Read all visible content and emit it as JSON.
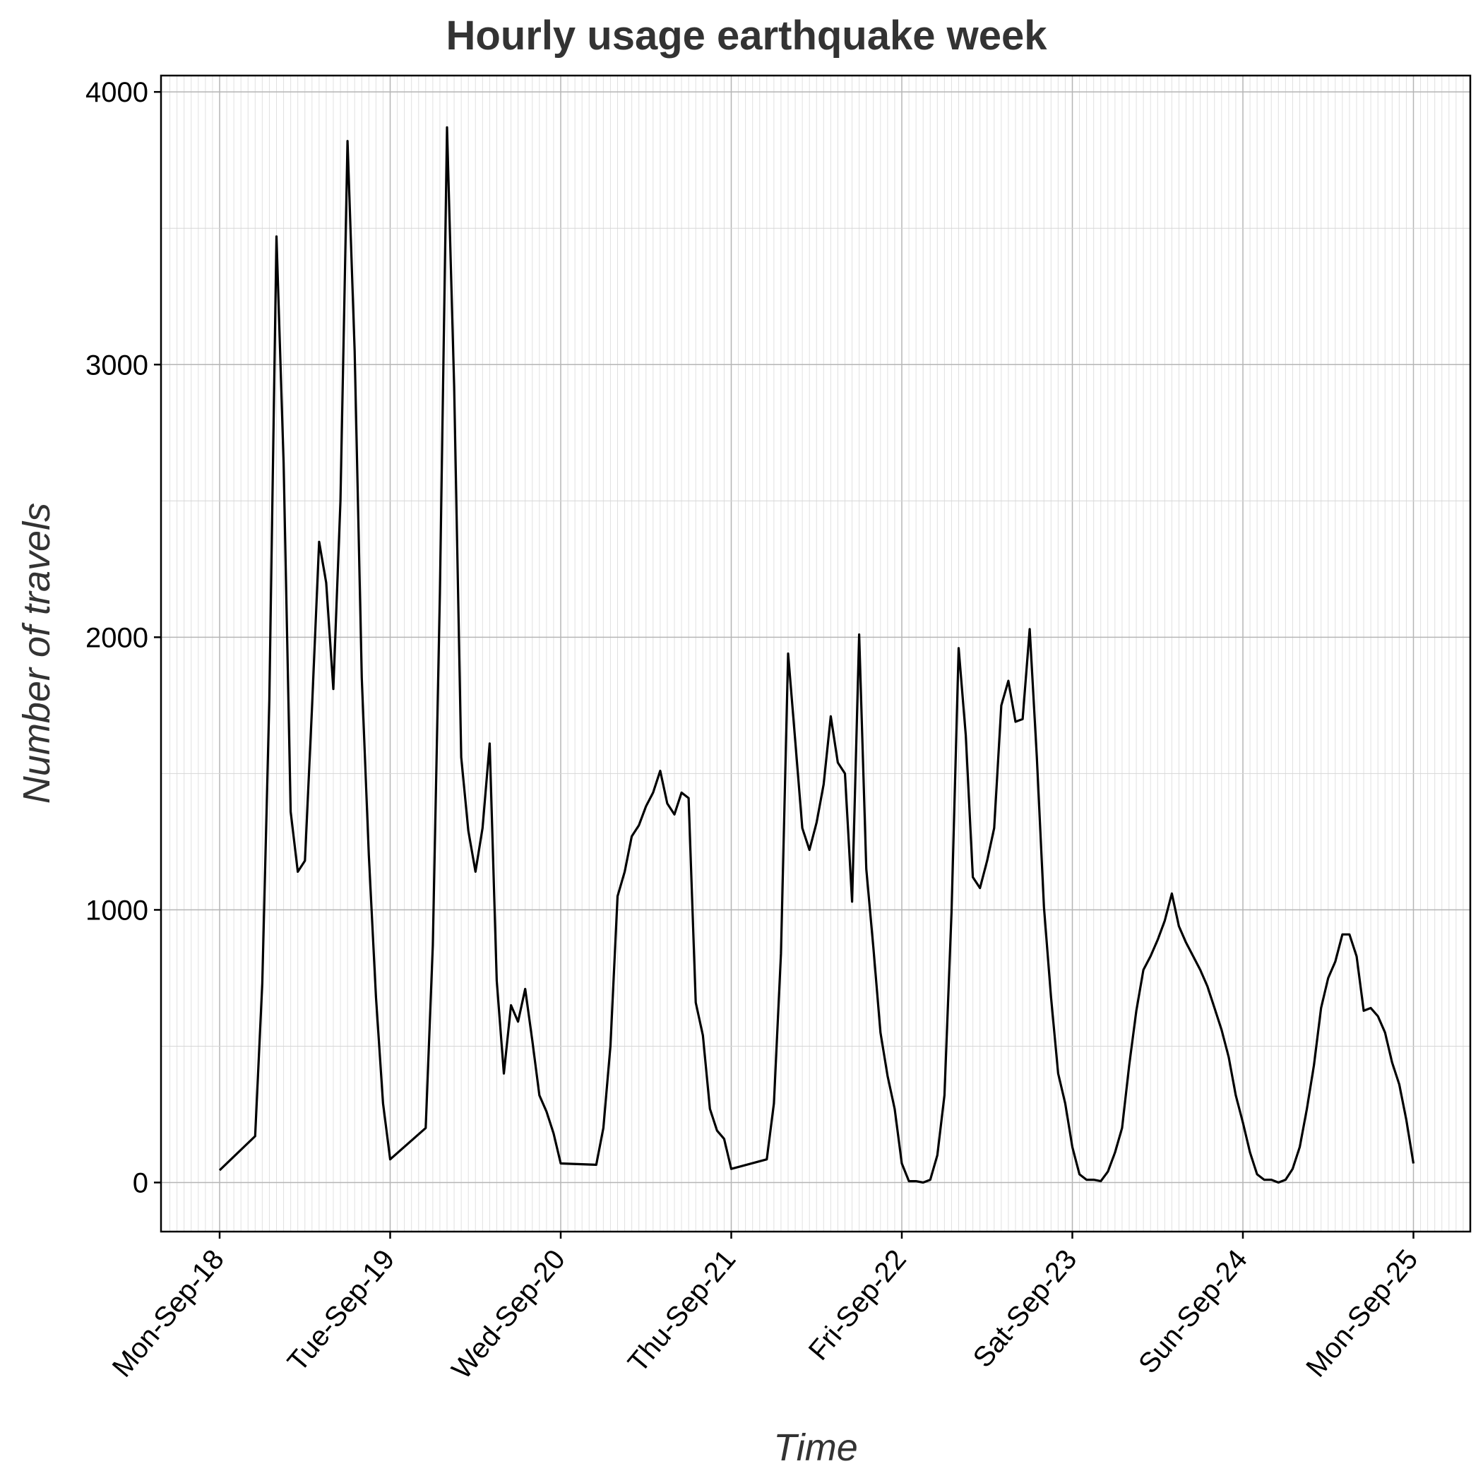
{
  "chart_data": {
    "type": "line",
    "title": "Hourly usage earthquake week",
    "xlabel": "Time",
    "ylabel": "Number of travels",
    "x_start": "2017-09-18 00:00",
    "x_end": "2017-09-25 00:00",
    "x_ticks": [
      "Mon-Sep-18",
      "Tue-Sep-19",
      "Wed-Sep-20",
      "Thu-Sep-21",
      "Fri-Sep-22",
      "Sat-Sep-23",
      "Sun-Sep-24",
      "Mon-Sep-25"
    ],
    "y_ticks": [
      "0",
      "1000",
      "2000",
      "3000",
      "4000"
    ],
    "ylim": [
      -180,
      4060
    ],
    "grid": true,
    "line_color": "#000000",
    "series": [
      {
        "x": [
          "09-18 00:00",
          "09-18 05:00",
          "09-18 06:00",
          "09-18 07:00",
          "09-18 08:00",
          "09-18 09:00",
          "09-18 10:00",
          "09-18 11:00",
          "09-18 12:00",
          "09-18 13:00",
          "09-18 14:00",
          "09-18 15:00",
          "09-18 16:00",
          "09-18 17:00",
          "09-18 18:00",
          "09-18 19:00",
          "09-18 20:00",
          "09-18 21:00",
          "09-18 22:00",
          "09-18 23:00",
          "09-19 00:00",
          "09-19 05:00",
          "09-19 06:00",
          "09-19 07:00",
          "09-19 08:00",
          "09-19 09:00",
          "09-19 10:00",
          "09-19 11:00",
          "09-19 12:00",
          "09-19 13:00",
          "09-19 14:00",
          "09-19 15:00",
          "09-19 16:00",
          "09-19 17:00",
          "09-19 18:00",
          "09-19 19:00",
          "09-19 20:00",
          "09-19 21:00",
          "09-19 22:00",
          "09-19 23:00",
          "09-20 00:00",
          "09-20 05:00",
          "09-20 06:00",
          "09-20 07:00",
          "09-20 08:00",
          "09-20 09:00",
          "09-20 10:00",
          "09-20 11:00",
          "09-20 12:00",
          "09-20 13:00",
          "09-20 14:00",
          "09-20 15:00",
          "09-20 16:00",
          "09-20 17:00",
          "09-20 18:00",
          "09-20 19:00",
          "09-20 20:00",
          "09-20 21:00",
          "09-20 22:00",
          "09-20 23:00",
          "09-21 00:00",
          "09-21 05:00",
          "09-21 06:00",
          "09-21 07:00",
          "09-21 08:00",
          "09-21 09:00",
          "09-21 10:00",
          "09-21 11:00",
          "09-21 12:00",
          "09-21 13:00",
          "09-21 14:00",
          "09-21 15:00",
          "09-21 16:00",
          "09-21 17:00",
          "09-21 18:00",
          "09-21 19:00",
          "09-21 20:00",
          "09-21 21:00",
          "09-21 22:00",
          "09-21 23:00",
          "09-22 00:00",
          "09-22 01:00",
          "09-22 02:00",
          "09-22 03:00",
          "09-22 04:00",
          "09-22 05:00",
          "09-22 06:00",
          "09-22 07:00",
          "09-22 08:00",
          "09-22 09:00",
          "09-22 10:00",
          "09-22 11:00",
          "09-22 12:00",
          "09-22 13:00",
          "09-22 14:00",
          "09-22 15:00",
          "09-22 16:00",
          "09-22 17:00",
          "09-22 18:00",
          "09-22 19:00",
          "09-22 20:00",
          "09-22 21:00",
          "09-22 22:00",
          "09-22 23:00",
          "09-23 00:00",
          "09-23 01:00",
          "09-23 02:00",
          "09-23 03:00",
          "09-23 04:00",
          "09-23 05:00",
          "09-23 06:00",
          "09-23 07:00",
          "09-23 08:00",
          "09-23 09:00",
          "09-23 10:00",
          "09-23 11:00",
          "09-23 12:00",
          "09-23 13:00",
          "09-23 14:00",
          "09-23 15:00",
          "09-23 16:00",
          "09-23 17:00",
          "09-23 18:00",
          "09-23 19:00",
          "09-23 20:00",
          "09-23 21:00",
          "09-23 22:00",
          "09-23 23:00",
          "09-24 00:00",
          "09-24 01:00",
          "09-24 02:00",
          "09-24 03:00",
          "09-24 04:00",
          "09-24 05:00",
          "09-24 06:00",
          "09-24 07:00",
          "09-24 08:00",
          "09-24 09:00",
          "09-24 10:00",
          "09-24 11:00",
          "09-24 12:00",
          "09-24 13:00",
          "09-24 14:00",
          "09-24 15:00",
          "09-24 16:00",
          "09-24 17:00",
          "09-24 18:00",
          "09-24 19:00",
          "09-24 20:00",
          "09-24 21:00",
          "09-24 22:00",
          "09-24 23:00",
          "09-25 00:00"
        ],
        "values": [
          45,
          170,
          730,
          1770,
          3470,
          2640,
          1360,
          1140,
          1180,
          1740,
          2350,
          2200,
          1810,
          2500,
          3820,
          3050,
          1850,
          1200,
          680,
          290,
          85,
          200,
          870,
          2160,
          3870,
          2920,
          1560,
          1290,
          1140,
          1300,
          1610,
          740,
          400,
          650,
          590,
          710,
          520,
          320,
          260,
          180,
          70,
          65,
          200,
          500,
          1050,
          1140,
          1270,
          1310,
          1380,
          1430,
          1510,
          1390,
          1350,
          1430,
          1410,
          660,
          540,
          270,
          190,
          160,
          50,
          85,
          290,
          840,
          1940,
          1620,
          1300,
          1220,
          1320,
          1460,
          1710,
          1540,
          1500,
          1030,
          2010,
          1150,
          860,
          550,
          390,
          270,
          70,
          5,
          5,
          0,
          10,
          100,
          320,
          990,
          1960,
          1640,
          1120,
          1080,
          1180,
          1300,
          1750,
          1840,
          1690,
          1700,
          2030,
          1560,
          1010,
          680,
          400,
          290,
          130,
          30,
          10,
          10,
          5,
          40,
          110,
          200,
          430,
          630,
          780,
          830,
          890,
          960,
          1060,
          940,
          880,
          830,
          780,
          720,
          640,
          560,
          460,
          320,
          220,
          110,
          30,
          10,
          10,
          0,
          10,
          50,
          130,
          270,
          430,
          640,
          750,
          810,
          910,
          910,
          830,
          630,
          640,
          610,
          550,
          440,
          360,
          230,
          70
        ]
      }
    ]
  }
}
